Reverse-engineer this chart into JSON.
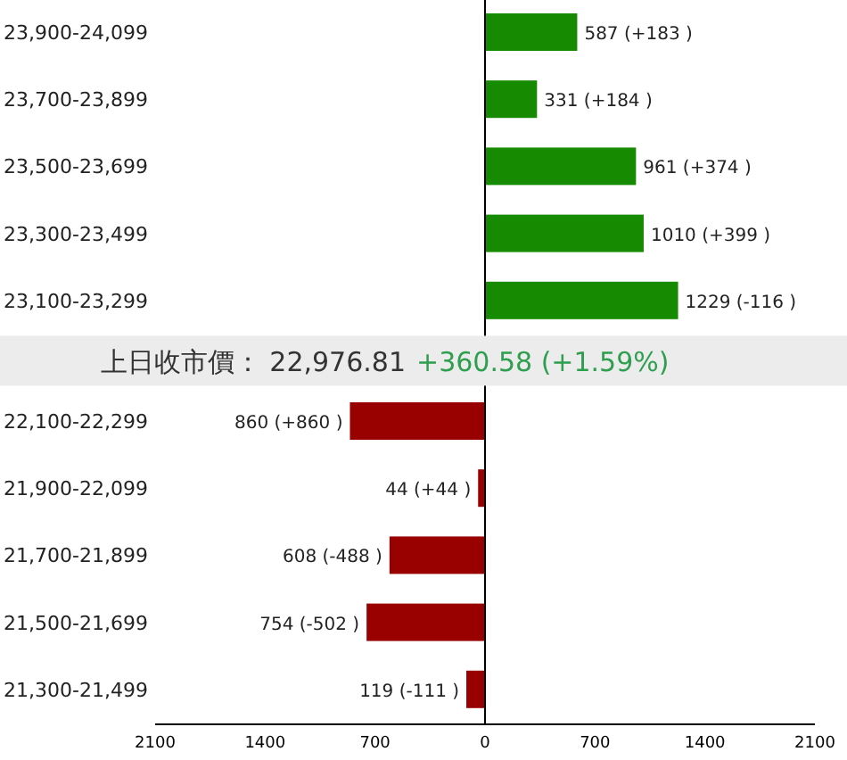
{
  "chart_data": {
    "type": "bar",
    "orientation": "horizontal",
    "categories": [
      "23,900-24,099",
      "23,700-23,899",
      "23,500-23,699",
      "23,300-23,499",
      "23,100-23,299",
      "22,100-22,299",
      "21,900-22,099",
      "21,700-21,899",
      "21,500-21,699",
      "21,300-21,499"
    ],
    "values": [
      587,
      331,
      961,
      1010,
      1229,
      860,
      44,
      608,
      754,
      119
    ],
    "base": [
      0,
      0,
      0,
      0,
      0,
      -860,
      -44,
      -608,
      -754,
      -119
    ],
    "colors": [
      "#168a00",
      "#168a00",
      "#168a00",
      "#168a00",
      "#168a00",
      "#990000",
      "#990000",
      "#990000",
      "#990000",
      "#990000"
    ],
    "value_labels": [
      "587 (+183 )",
      "331 (+184 )",
      "961 (+374 )",
      "1010 (+399 )",
      "1229 (-116 )",
      "860 (+860 )",
      "44 (+44 )",
      "608 (-488 )",
      "754 (-502 )",
      "119 (-111 )"
    ],
    "xlim": [
      -2100,
      2100
    ],
    "xticks": [
      {
        "value": -2100,
        "label": "2100"
      },
      {
        "value": -1400,
        "label": "1400"
      },
      {
        "value": -700,
        "label": "700"
      },
      0,
      700,
      1400,
      2100
    ],
    "annotations": [
      "上日收市價： 22,976.81",
      "+360.58 (+1.59%)"
    ]
  }
}
